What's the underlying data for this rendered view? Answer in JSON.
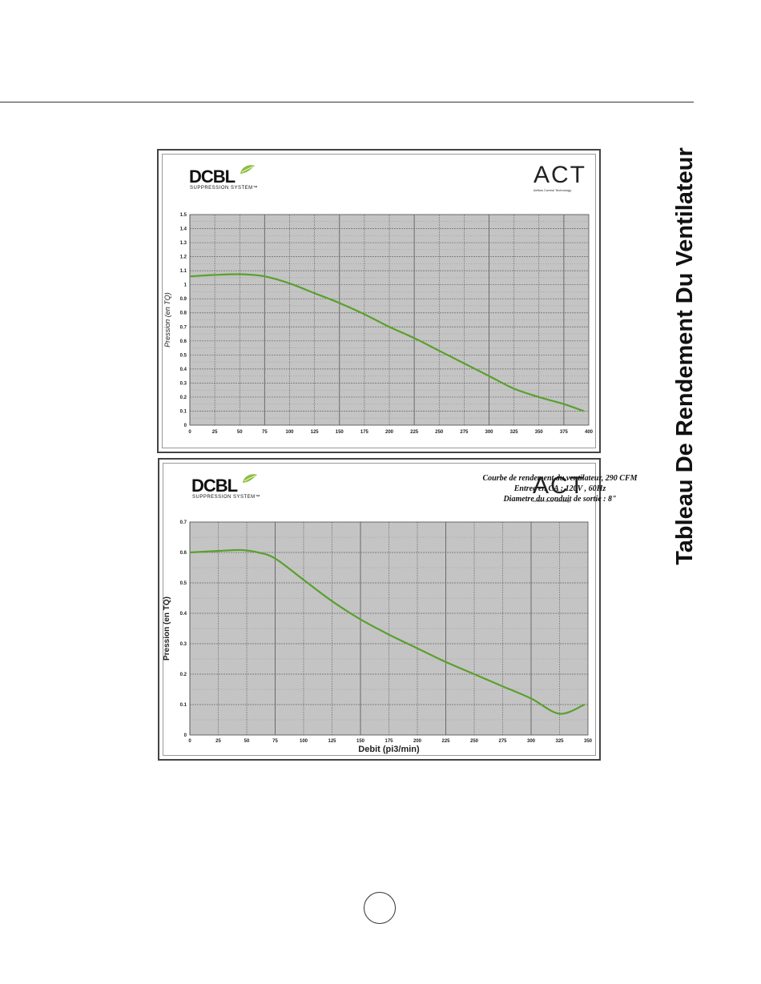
{
  "page": {
    "side_title": "Tableau De Rendement Du Ventilateur"
  },
  "logos": {
    "dcbl_word": "DCBL",
    "dcbl_sub": "SUPPRESSION SYSTEM™",
    "act_word": "ACT",
    "act_sub": "Airflow  Control  Technology"
  },
  "chart2_header": {
    "line1": "Courbe de rendement du ventilateur, 290 CFM",
    "line2": "Entree en CA : 120V , 60Hz",
    "line3": "Diametre du conduit de sortie : 8\""
  },
  "colors": {
    "plot_bg": "#c4c4c4",
    "curve": "#5aa02c",
    "frame": "#444444"
  },
  "chart_data": [
    {
      "type": "line",
      "title": "",
      "xlabel": "",
      "ylabel": "Pression (en TQ)",
      "xlim": [
        0,
        400
      ],
      "ylim": [
        0,
        1.5
      ],
      "x_ticks": [
        0,
        25,
        50,
        75,
        100,
        125,
        150,
        175,
        200,
        225,
        250,
        275,
        300,
        325,
        350,
        375,
        400
      ],
      "x_tick_labels": [
        "0",
        "25",
        "50",
        "75",
        "100",
        "125",
        "150",
        "175",
        "200",
        "225",
        "250",
        "275",
        "300",
        "325",
        "350",
        "375",
        "400"
      ],
      "y_ticks": [
        0,
        0.1,
        0.2,
        0.3,
        0.4,
        0.5,
        0.6,
        0.7,
        0.8,
        0.9,
        1,
        1.1,
        1.2,
        1.3,
        1.4,
        1.5
      ],
      "y_tick_labels": [
        "0",
        "0.1",
        "0.2",
        "0.3",
        "0.4",
        "0.5",
        "0.6",
        "0.7",
        "0.8",
        "0.9",
        "1",
        "1.1",
        "1.2",
        "1.3",
        "1.4",
        "1.5"
      ],
      "grid": true,
      "series": [
        {
          "x": [
            0,
            25,
            50,
            75,
            100,
            125,
            150,
            175,
            200,
            225,
            250,
            275,
            300,
            325,
            350,
            375,
            395
          ],
          "y": [
            1.06,
            1.07,
            1.075,
            1.06,
            1.01,
            0.94,
            0.87,
            0.79,
            0.7,
            0.62,
            0.53,
            0.44,
            0.35,
            0.26,
            0.2,
            0.15,
            0.1
          ]
        }
      ]
    },
    {
      "type": "line",
      "title": "",
      "xlabel": "Debit (pi3/min)",
      "ylabel": "Pression (en TQ)",
      "xlim": [
        0,
        350
      ],
      "ylim": [
        0,
        0.7
      ],
      "x_ticks": [
        0,
        25,
        50,
        75,
        100,
        125,
        150,
        175,
        200,
        225,
        250,
        275,
        300,
        325,
        350
      ],
      "x_tick_labels": [
        "0",
        "25",
        "50",
        "75",
        "100",
        "125",
        "150",
        "175",
        "200",
        "225",
        "250",
        "275",
        "300",
        "325",
        "350"
      ],
      "y_ticks": [
        0,
        0.1,
        0.2,
        0.3,
        0.4,
        0.5,
        0.6,
        0.7
      ],
      "y_tick_labels": [
        "0",
        "0.1",
        "0.2",
        "0.3",
        "0.4",
        "0.5",
        "0.6",
        "0.7"
      ],
      "grid": true,
      "series": [
        {
          "x": [
            0,
            25,
            45,
            60,
            75,
            100,
            125,
            150,
            175,
            200,
            225,
            250,
            275,
            300,
            325,
            347
          ],
          "y": [
            0.6,
            0.605,
            0.608,
            0.6,
            0.58,
            0.51,
            0.44,
            0.38,
            0.33,
            0.285,
            0.24,
            0.2,
            0.16,
            0.12,
            0.07,
            0.1
          ]
        }
      ]
    }
  ]
}
